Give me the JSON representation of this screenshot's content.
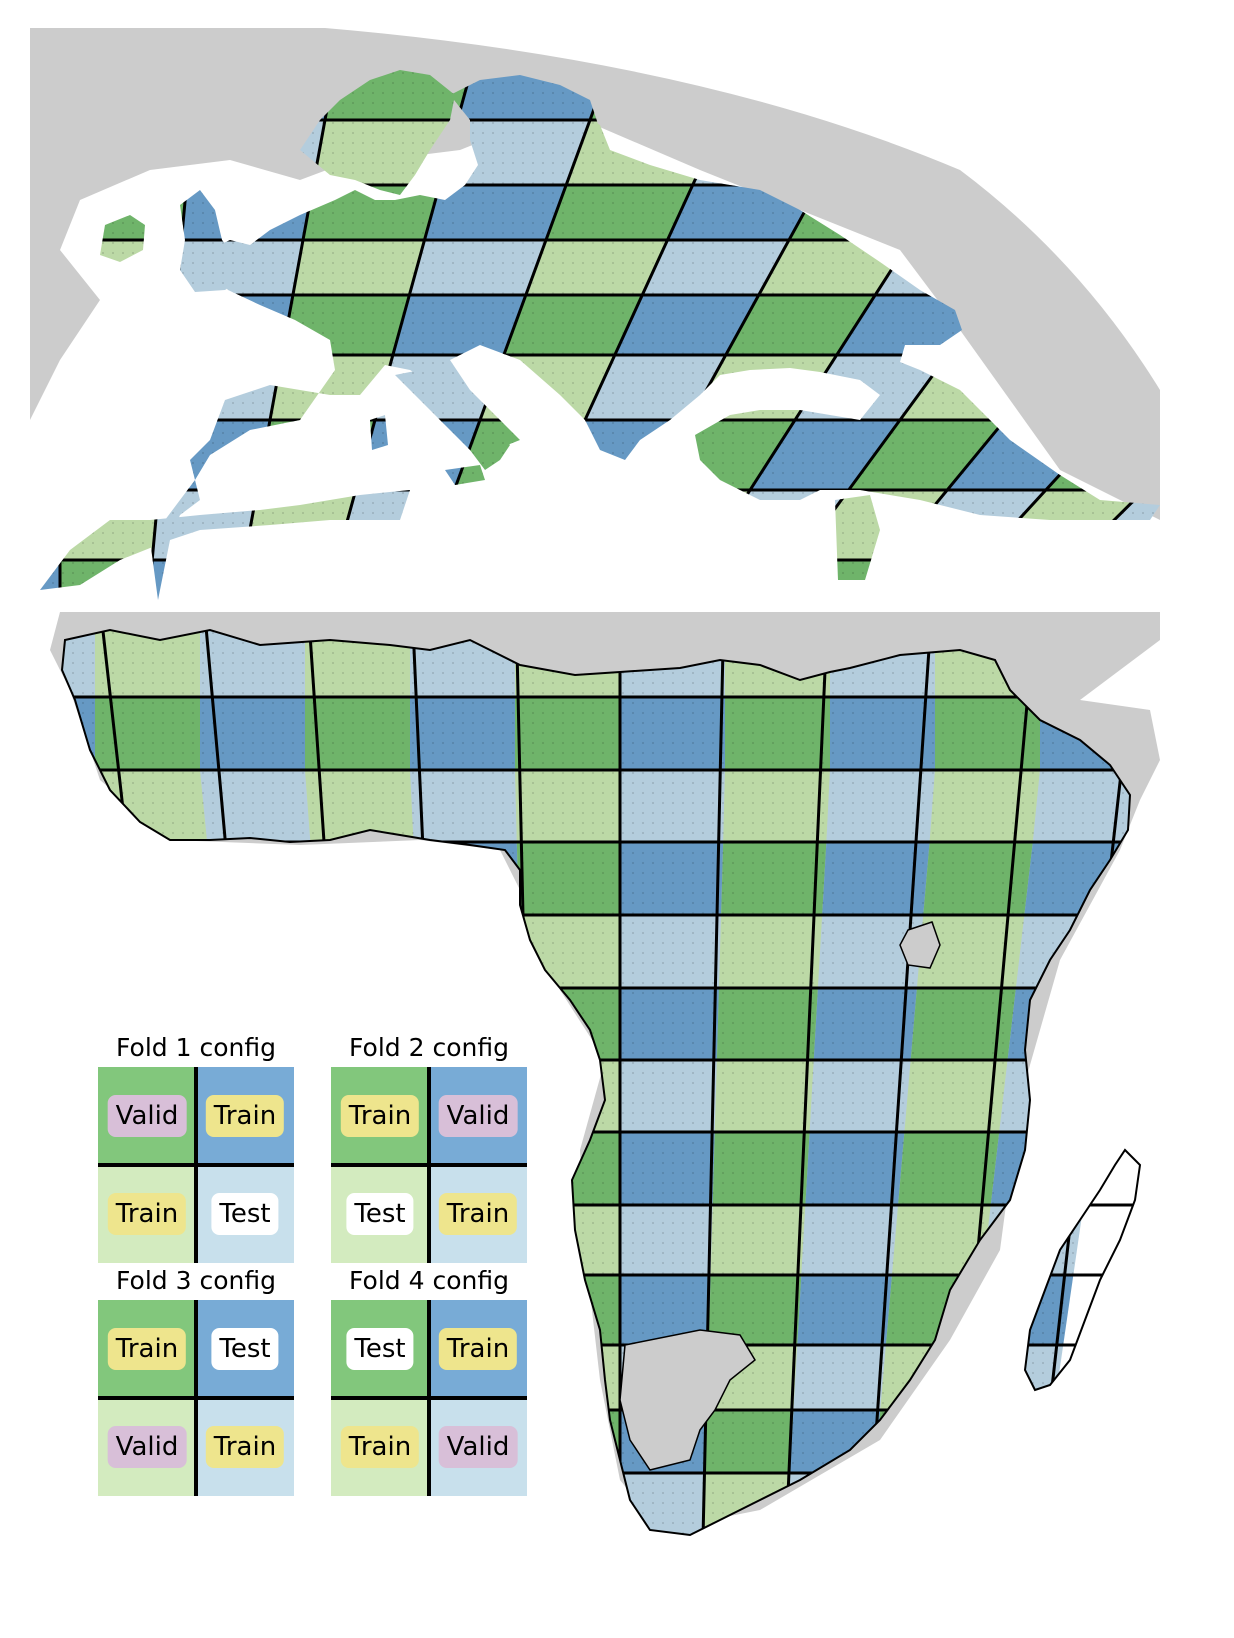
{
  "colors": {
    "dark_green": "#6fb46a",
    "light_green": "#bcd9a6",
    "dark_blue": "#6699c4",
    "light_blue": "#b4cddd",
    "land_gray": "#cccccc",
    "legend_dark_green": "#82c77c",
    "legend_light_green": "#d3ebbf",
    "legend_dark_blue": "#78abd6",
    "legend_light_blue": "#c8e0ec",
    "pill_valid": "#d8bfd8",
    "pill_train": "#eee58d",
    "pill_test": "#ffffff"
  },
  "maps": {
    "europe_region": "Europe",
    "africa_region": "Africa"
  },
  "legend": {
    "folds": [
      {
        "title": "Fold 1 config",
        "cells": [
          "Valid",
          "Train",
          "Train",
          "Test"
        ]
      },
      {
        "title": "Fold 2 config",
        "cells": [
          "Train",
          "Valid",
          "Test",
          "Train"
        ]
      },
      {
        "title": "Fold 3 config",
        "cells": [
          "Train",
          "Test",
          "Valid",
          "Train"
        ]
      },
      {
        "title": "Fold 4 config",
        "cells": [
          "Test",
          "Train",
          "Train",
          "Valid"
        ]
      }
    ]
  }
}
